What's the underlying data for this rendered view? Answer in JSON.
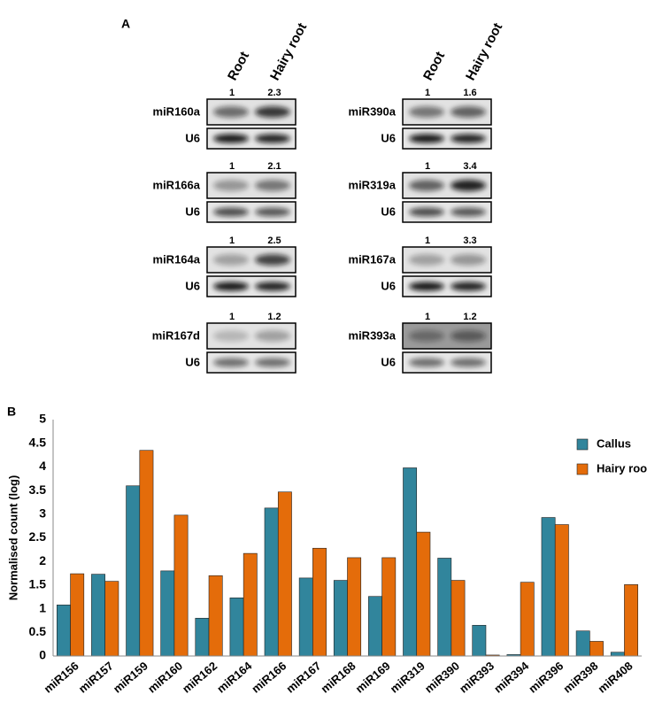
{
  "panel_labels": [
    "A",
    "B"
  ],
  "blots": {
    "columns": [
      "Root",
      "Hairy root"
    ],
    "loading_control": "U6",
    "groups": [
      [
        {
          "mirna": "miR160a",
          "ratios": [
            1,
            2.3
          ]
        },
        {
          "mirna": "miR166a",
          "ratios": [
            1,
            2.1
          ]
        },
        {
          "mirna": "miR164a",
          "ratios": [
            1,
            2.5
          ]
        },
        {
          "mirna": "miR167d",
          "ratios": [
            1,
            1.2
          ]
        }
      ],
      [
        {
          "mirna": "miR390a",
          "ratios": [
            1,
            1.6
          ]
        },
        {
          "mirna": "miR319a",
          "ratios": [
            1,
            3.4
          ]
        },
        {
          "mirna": "miR167a",
          "ratios": [
            1,
            3.3
          ]
        },
        {
          "mirna": "miR393a",
          "ratios": [
            1,
            1.2
          ]
        }
      ]
    ]
  },
  "chart_data": {
    "type": "bar",
    "ylabel": "Normalised count (log)",
    "categories": [
      "miR156",
      "miR157",
      "miR159",
      "miR160",
      "miR162",
      "miR164",
      "miR166",
      "miR167",
      "miR168",
      "miR169",
      "miR319",
      "miR390",
      "miR393",
      "miR394",
      "miR396",
      "miR398",
      "miR408"
    ],
    "series": [
      {
        "name": "Callus",
        "color": "#31859c",
        "values": [
          1.08,
          1.73,
          3.6,
          1.8,
          0.8,
          1.23,
          3.13,
          1.65,
          1.6,
          1.26,
          3.98,
          2.07,
          0.65,
          0.03,
          2.93,
          0.53,
          0.08
        ]
      },
      {
        "name": "Hairy root",
        "color": "#e46c0a",
        "values": [
          1.74,
          1.58,
          4.35,
          2.98,
          1.7,
          2.17,
          3.47,
          2.28,
          2.08,
          2.08,
          2.62,
          1.6,
          0.02,
          1.56,
          2.78,
          0.31,
          1.51
        ]
      }
    ],
    "ylim": [
      0,
      5
    ],
    "yticks": [
      0,
      0.5,
      1,
      1.5,
      2,
      2.5,
      3,
      3.5,
      4,
      4.5,
      5
    ],
    "grid": false,
    "legend": "top-right"
  }
}
